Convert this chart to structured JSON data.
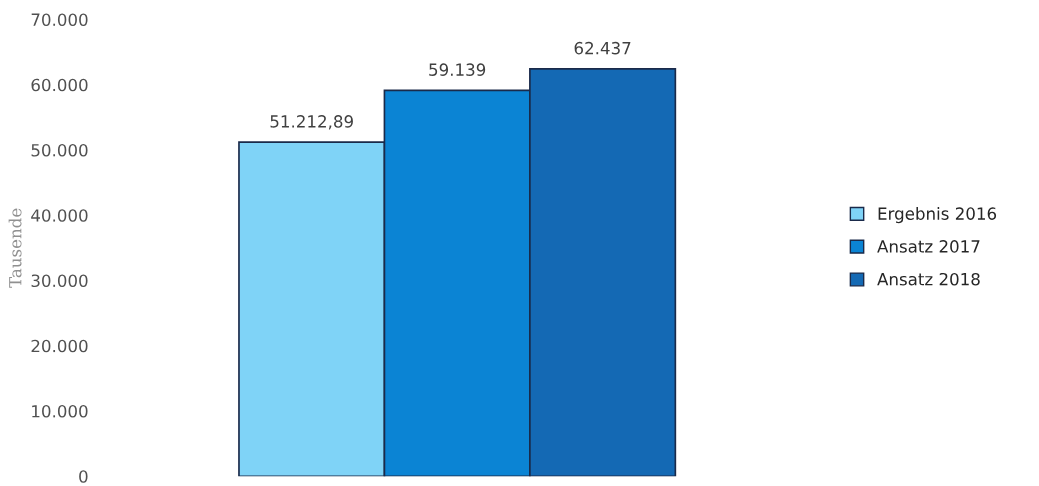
{
  "chart_data": {
    "type": "bar",
    "ylabel": "Tausende",
    "categories": [
      null
    ],
    "series": [
      {
        "name": "Ergebnis 2016",
        "color": "#7fd3f7",
        "values": [
          51212.89
        ],
        "value_labels": [
          "51.212,89"
        ]
      },
      {
        "name": "Ansatz 2017",
        "color": "#0b84d4",
        "values": [
          59139
        ],
        "value_labels": [
          "59.139"
        ]
      },
      {
        "name": "Ansatz 2018",
        "color": "#1469b4",
        "values": [
          62437
        ],
        "value_labels": [
          "62.437"
        ]
      }
    ],
    "ylim": [
      0,
      70000
    ],
    "yticks": [
      {
        "value": 0,
        "label": "0"
      },
      {
        "value": 10000,
        "label": "10.000"
      },
      {
        "value": 20000,
        "label": "20.000"
      },
      {
        "value": 30000,
        "label": "30.000"
      },
      {
        "value": 40000,
        "label": "40.000"
      },
      {
        "value": 50000,
        "label": "50.000"
      },
      {
        "value": 60000,
        "label": "60.000"
      },
      {
        "value": 70000,
        "label": "70.000"
      }
    ],
    "tick_labels": "y",
    "grid": false,
    "legend": "right"
  }
}
